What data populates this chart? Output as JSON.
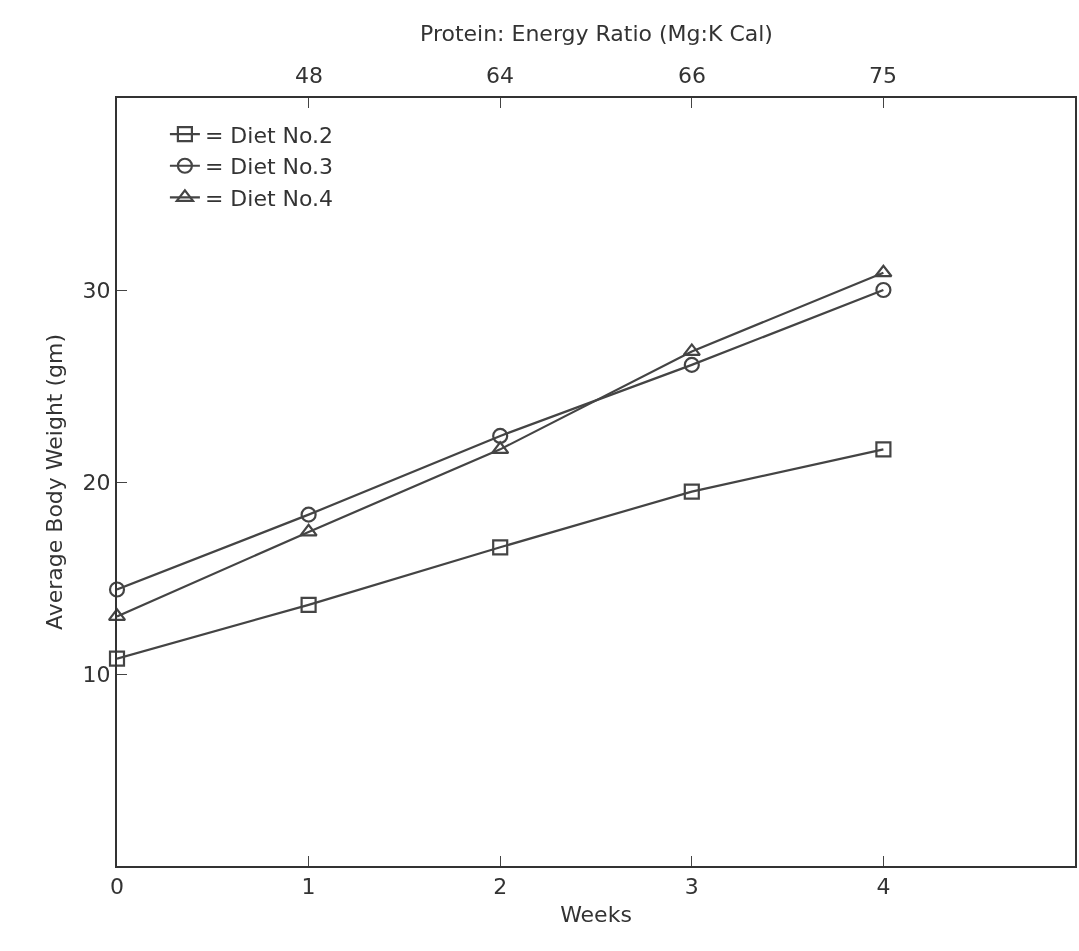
{
  "chart_data": {
    "type": "line",
    "xlabel": "Weeks",
    "x2label": "Protein: Energy Ratio (Mg:K Cal)",
    "ylabel": "Average Body Weight (gm)",
    "x": [
      0,
      1,
      2,
      3,
      4
    ],
    "xlim": [
      0,
      5
    ],
    "xticks": [
      0,
      1,
      2,
      3,
      4
    ],
    "annotations": [
      "48",
      "64",
      "66",
      "75"
    ],
    "ylim": [
      0,
      40
    ],
    "yticks": [
      10,
      20,
      30
    ],
    "grid": false,
    "legend": "top left",
    "line_style": "solid",
    "series": [
      {
        "name": "= Diet No.2",
        "color": "#444444",
        "marker": "square",
        "values": [
          10.8,
          13.6,
          16.6,
          19.5,
          21.7
        ]
      },
      {
        "name": "= Diet No.3",
        "color": "#444444",
        "marker": "circle",
        "values": [
          14.4,
          18.3,
          22.4,
          26.1,
          30.0
        ]
      },
      {
        "name": "= Diet No.4",
        "color": "#444444",
        "marker": "triangle",
        "values": [
          13.0,
          17.4,
          21.7,
          26.8,
          30.9
        ]
      }
    ]
  }
}
